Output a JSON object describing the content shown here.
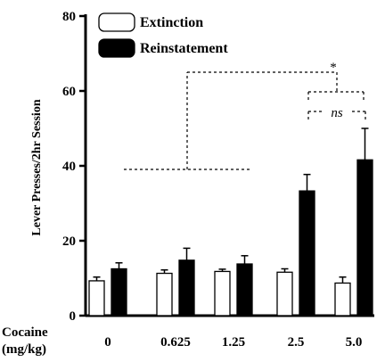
{
  "chart_data": {
    "type": "bar",
    "ylabel": "Lever Presses/2hr Session",
    "xlabel_line1": "Cocaine",
    "xlabel_line2": "(mg/kg)",
    "categories": [
      "0",
      "0.625",
      "1.25",
      "2.5",
      "5.0"
    ],
    "ylim": [
      0,
      80
    ],
    "yticks": [
      "0",
      "20",
      "40",
      "60",
      "80"
    ],
    "series": [
      {
        "name": "Extinction",
        "color": "#ffffff",
        "values": [
          9.3,
          11.3,
          11.8,
          11.6,
          8.7
        ],
        "errors": [
          1.0,
          0.9,
          0.6,
          0.9,
          1.6
        ]
      },
      {
        "name": "Reinstatement",
        "color": "#000000",
        "values": [
          12.5,
          14.8,
          13.8,
          33.3,
          41.6
        ],
        "errors": [
          1.6,
          3.2,
          2.2,
          4.4,
          8.4
        ]
      }
    ],
    "legend_position": "top-left",
    "annotations": {
      "significance": "*",
      "nonsignificant": "ns"
    }
  }
}
